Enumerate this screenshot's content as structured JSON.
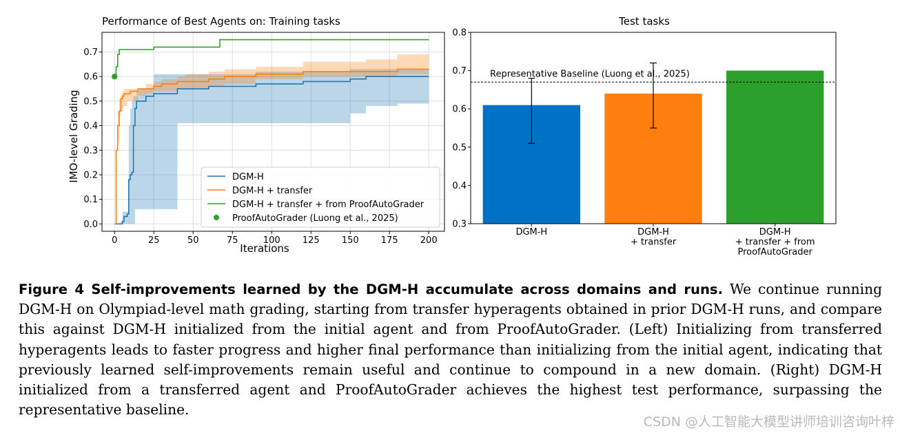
{
  "chart_data": [
    {
      "type": "line",
      "title": "Performance of Best Agents on: Training tasks",
      "xlabel": "Iterations",
      "ylabel": "IMO-level Grading",
      "xlim": [
        -8,
        210
      ],
      "ylim": [
        -0.03,
        0.78
      ],
      "xticks": [
        0,
        25,
        50,
        75,
        100,
        125,
        150,
        175,
        200
      ],
      "yticks": [
        0.0,
        0.1,
        0.2,
        0.3,
        0.4,
        0.5,
        0.6,
        0.7
      ],
      "ytick_labels": [
        "0.0",
        "0.1",
        "0.2",
        "0.3",
        "0.4",
        "0.5",
        "0.6",
        "0.7"
      ],
      "grid": true,
      "legend_position": "lower-right",
      "series": [
        {
          "name": "DGM-H",
          "color": "#1f77b4",
          "x": [
            0,
            2,
            4,
            5,
            6,
            8,
            9,
            10,
            11,
            12,
            13,
            14,
            16,
            20,
            25,
            30,
            40,
            50,
            55,
            60,
            70,
            85,
            90,
            100,
            110,
            120,
            130,
            150,
            160,
            170,
            180,
            200
          ],
          "y": [
            0.0,
            0.0,
            0.0,
            0.01,
            0.03,
            0.04,
            0.18,
            0.2,
            0.21,
            0.4,
            0.47,
            0.5,
            0.5,
            0.52,
            0.53,
            0.53,
            0.55,
            0.55,
            0.55,
            0.56,
            0.56,
            0.56,
            0.57,
            0.57,
            0.57,
            0.58,
            0.58,
            0.59,
            0.6,
            0.6,
            0.6,
            0.6
          ],
          "band_upper": [
            0.0,
            0.0,
            0.01,
            0.05,
            0.05,
            0.05,
            0.4,
            0.47,
            0.5,
            0.52,
            0.52,
            0.54,
            0.55,
            0.55,
            0.61,
            0.61,
            0.61,
            0.61,
            0.61,
            0.61,
            0.61,
            0.61,
            0.62,
            0.62,
            0.62,
            0.62,
            0.62,
            0.63,
            0.63,
            0.63,
            0.63,
            0.63
          ],
          "band_lower": [
            0.0,
            0.0,
            0.0,
            0.0,
            0.0,
            0.0,
            0.0,
            0.0,
            0.0,
            0.0,
            0.06,
            0.06,
            0.06,
            0.06,
            0.06,
            0.06,
            0.41,
            0.41,
            0.41,
            0.41,
            0.41,
            0.41,
            0.41,
            0.41,
            0.41,
            0.41,
            0.41,
            0.45,
            0.48,
            0.48,
            0.49,
            0.5
          ]
        },
        {
          "name": "DGM-H + transfer",
          "color": "#ff7f0e",
          "x": [
            0,
            1,
            2,
            3,
            4,
            5,
            6,
            8,
            10,
            15,
            20,
            25,
            30,
            40,
            45,
            60,
            70,
            90,
            100,
            120,
            160,
            180,
            200
          ],
          "y": [
            0.0,
            0.3,
            0.4,
            0.46,
            0.51,
            0.52,
            0.53,
            0.53,
            0.54,
            0.55,
            0.55,
            0.56,
            0.57,
            0.58,
            0.58,
            0.59,
            0.6,
            0.61,
            0.61,
            0.62,
            0.62,
            0.63,
            0.63
          ],
          "band_upper": [
            0.0,
            0.3,
            0.46,
            0.51,
            0.53,
            0.54,
            0.55,
            0.55,
            0.55,
            0.55,
            0.57,
            0.58,
            0.59,
            0.6,
            0.61,
            0.62,
            0.63,
            0.64,
            0.64,
            0.66,
            0.67,
            0.69,
            0.69
          ],
          "band_lower": [
            0.0,
            0.3,
            0.34,
            0.44,
            0.46,
            0.47,
            0.48,
            0.5,
            0.5,
            0.52,
            0.53,
            0.54,
            0.54,
            0.55,
            0.55,
            0.56,
            0.57,
            0.59,
            0.59,
            0.6,
            0.6,
            0.61,
            0.61
          ]
        },
        {
          "name": "DGM-H + transfer + from ProofAutoGrader",
          "color": "#2ca02c",
          "x": [
            0,
            1,
            2,
            3,
            8,
            10,
            25,
            30,
            65,
            67,
            200
          ],
          "y": [
            0.6,
            0.64,
            0.69,
            0.71,
            0.71,
            0.71,
            0.72,
            0.72,
            0.72,
            0.75,
            0.75
          ]
        },
        {
          "name": "ProofAutoGrader (Luong et al., 2025)",
          "color": "#2ca02c",
          "kind": "point",
          "x": [
            0
          ],
          "y": [
            0.6
          ]
        }
      ]
    },
    {
      "type": "bar",
      "title": "Test tasks",
      "categories": [
        [
          "DGM-H"
        ],
        [
          "DGM-H",
          "+ transfer"
        ],
        [
          "DGM-H",
          "+ transfer + from",
          "ProofAutoGrader"
        ]
      ],
      "values": [
        0.61,
        0.64,
        0.7
      ],
      "error_low": [
        0.51,
        0.55,
        null
      ],
      "error_high": [
        0.68,
        0.72,
        null
      ],
      "colors": [
        "#0072c6",
        "#ff7f0e",
        "#2ca02c"
      ],
      "ylim": [
        0.3,
        0.8
      ],
      "yticks": [
        0.3,
        0.4,
        0.5,
        0.6,
        0.7,
        0.8
      ],
      "ytick_labels": [
        "0.3",
        "0.4",
        "0.5",
        "0.6",
        "0.7",
        "0.8"
      ],
      "baseline": {
        "value": 0.67,
        "label": "Representative Baseline (Luong et al., 2025)"
      }
    }
  ],
  "caption": {
    "heading": "Figure 4  Self-improvements learned by the DGM-H accumulate across domains and runs.",
    "body": "We continue running DGM-H on Olympiad-level math grading, starting from transfer hyperagents obtained in prior DGM-H runs, and compare this against DGM-H initialized from the initial agent and from ProofAutoGrader. (Left) Initializing from transferred hyperagents leads to faster progress and higher final performance than initializing from the initial agent, indicating that previously learned self-improvements remain useful and continue to compound in a new domain. (Right) DGM-H initialized from a transferred agent and ProofAutoGrader achieves the highest test performance, surpassing the representative baseline."
  },
  "watermark": "CSDN @人工智能大模型讲师培训咨询叶梓"
}
